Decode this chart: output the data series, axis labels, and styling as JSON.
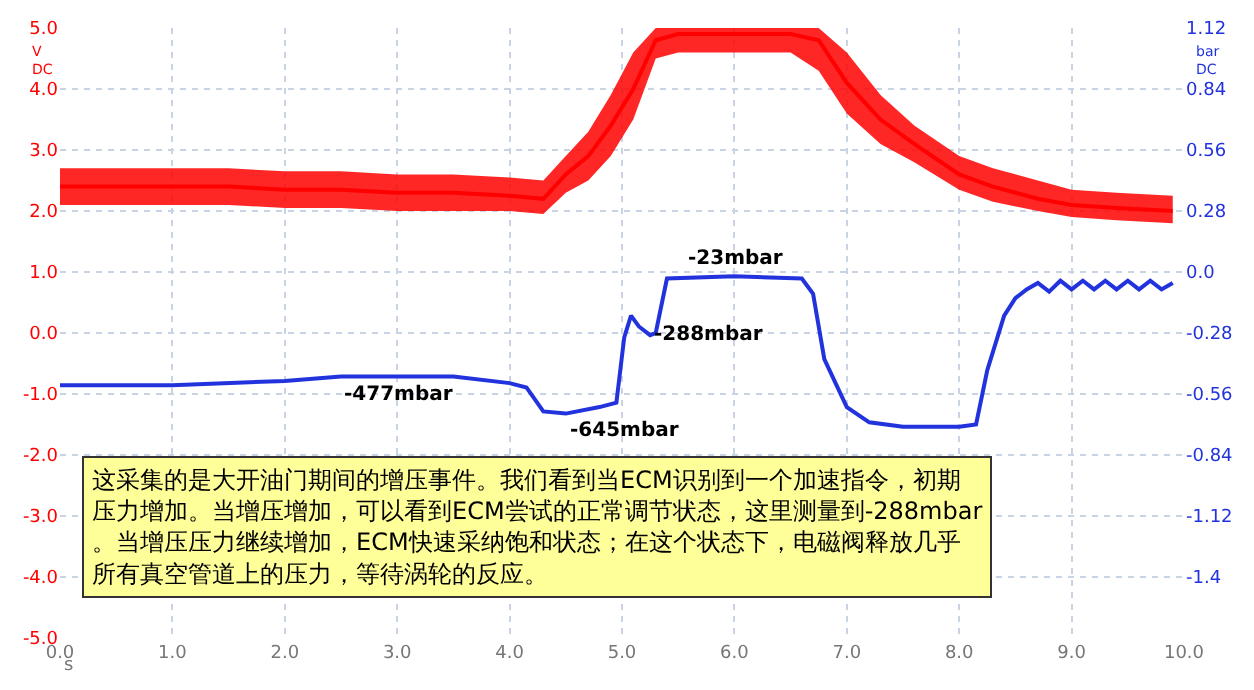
{
  "chart_data": {
    "type": "line",
    "xlabel": "s",
    "ylabel": "V DC",
    "y2label": "bar DC",
    "xlim": [
      0,
      10
    ],
    "xticks": [
      {
        "value": 0,
        "label": "0.0"
      },
      {
        "value": 1,
        "label": "1.0"
      },
      {
        "value": 2,
        "label": "2.0"
      },
      {
        "value": 3,
        "label": "3.0"
      },
      {
        "value": 4,
        "label": "4.0"
      },
      {
        "value": 5,
        "label": "5.0"
      },
      {
        "value": 6,
        "label": "6.0"
      },
      {
        "value": 7,
        "label": "7.0"
      },
      {
        "value": 8,
        "label": "8.0"
      },
      {
        "value": 9,
        "label": "9.0"
      },
      {
        "value": 10,
        "label": "10.0"
      }
    ],
    "ylim": [
      -5,
      5
    ],
    "yticks": [
      {
        "value": -5,
        "label": "-5.0"
      },
      {
        "value": -4,
        "label": "-4.0"
      },
      {
        "value": -3,
        "label": "-3.0"
      },
      {
        "value": -2,
        "label": "-2.0"
      },
      {
        "value": -1,
        "label": "-1.0"
      },
      {
        "value": 0,
        "label": "0.0"
      },
      {
        "value": 1,
        "label": "1.0"
      },
      {
        "value": 2,
        "label": "2.0"
      },
      {
        "value": 3,
        "label": "3.0"
      },
      {
        "value": 4,
        "label": "4.0"
      },
      {
        "value": 5,
        "label": "5.0"
      }
    ],
    "y2lim": [
      -1.68,
      1.12
    ],
    "y2ticks": [
      -1.4,
      -1.12,
      -0.84,
      -0.56,
      -0.28,
      {
        "value": 0,
        "label": "0.0"
      },
      0.28,
      0.56,
      0.84,
      1.12
    ],
    "grid": true,
    "series": [
      {
        "color": "#ff0000",
        "x": [
          0,
          0.5,
          1,
          1.5,
          2,
          2.5,
          3,
          3.5,
          4,
          4.3,
          4.5,
          4.7,
          4.9,
          5.1,
          5.3,
          5.5,
          6,
          6.5,
          6.75,
          7,
          7.3,
          7.6,
          8,
          8.3,
          8.7,
          9,
          9.4,
          9.9
        ],
        "values": [
          2.4,
          2.4,
          2.4,
          2.4,
          2.35,
          2.35,
          2.3,
          2.3,
          2.25,
          2.2,
          2.6,
          2.9,
          3.4,
          4.0,
          4.8,
          4.9,
          4.9,
          4.9,
          4.8,
          4.1,
          3.5,
          3.1,
          2.6,
          2.4,
          2.2,
          2.1,
          2.05,
          2.0
        ],
        "lower": [
          2.1,
          2.1,
          2.1,
          2.1,
          2.05,
          2.05,
          2.0,
          2.0,
          2.0,
          1.95,
          2.3,
          2.5,
          2.9,
          3.5,
          4.5,
          4.6,
          4.6,
          4.6,
          4.3,
          3.6,
          3.1,
          2.8,
          2.35,
          2.15,
          2.0,
          1.9,
          1.85,
          1.8
        ],
        "upper": [
          2.7,
          2.7,
          2.7,
          2.7,
          2.65,
          2.65,
          2.6,
          2.6,
          2.55,
          2.5,
          2.9,
          3.3,
          3.9,
          4.6,
          5.0,
          5.0,
          5.0,
          5.0,
          5.0,
          4.6,
          3.9,
          3.4,
          2.9,
          2.7,
          2.5,
          2.35,
          2.3,
          2.25
        ]
      },
      {
        "color": "#2233dd",
        "axis": "y2",
        "x": [
          0,
          1,
          2,
          2.5,
          3,
          3.5,
          4,
          4.15,
          4.3,
          4.5,
          4.8,
          4.95,
          5.02,
          5.08,
          5.15,
          5.25,
          5.3,
          5.4,
          6,
          6.6,
          6.7,
          6.8,
          7,
          7.2,
          7.5,
          8,
          8.15,
          8.25,
          8.4,
          8.5,
          8.6,
          8.7,
          8.8,
          8.9,
          9,
          9.1,
          9.2,
          9.3,
          9.4,
          9.5,
          9.6,
          9.7,
          9.8,
          9.9
        ],
        "values": [
          -0.52,
          -0.52,
          -0.5,
          -0.48,
          -0.48,
          -0.48,
          -0.51,
          -0.53,
          -0.64,
          -0.65,
          -0.62,
          -0.6,
          -0.3,
          -0.2,
          -0.25,
          -0.29,
          -0.28,
          -0.03,
          -0.02,
          -0.03,
          -0.1,
          -0.4,
          -0.62,
          -0.69,
          -0.71,
          -0.71,
          -0.7,
          -0.45,
          -0.2,
          -0.12,
          -0.08,
          -0.05,
          -0.09,
          -0.04,
          -0.08,
          -0.04,
          -0.08,
          -0.04,
          -0.08,
          -0.04,
          -0.08,
          -0.04,
          -0.08,
          -0.05
        ]
      }
    ],
    "annotations": [
      "-23mbar",
      "-288mbar",
      "-477mbar",
      "-645mbar",
      "这采集的是大开油门期间的增压事件。我们看到当ECM识别到一个加速指令，初期压力增加。当增压增加，可以看到ECM尝试的正常调节状态，这里测量到-288mbar。当增压压力继续增加，ECM快速采纳饱和状态；在这个状态下，电磁阀释放几乎所有真空管道上的压力，等待涡轮的反应。"
    ]
  }
}
